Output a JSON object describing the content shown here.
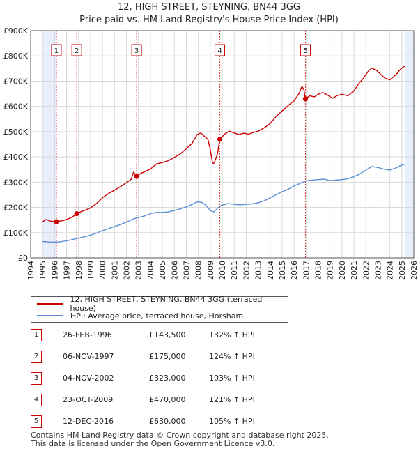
{
  "header": {
    "title_line1": "12, HIGH STREET, STEYNING, BN44 3GG",
    "title_line2": "Price paid vs. HM Land Registry's House Price Index (HPI)"
  },
  "colors": {
    "property": "#cc0000",
    "hpi": "#5b8ed6",
    "shade": "#e8eefb",
    "grid": "#d9d9d9",
    "marker_box": "#cc0000"
  },
  "legend": {
    "property_label": "12, HIGH STREET, STEYNING, BN44 3GG (terraced house)",
    "hpi_label": "HPI: Average price, terraced house, Horsham"
  },
  "sales": [
    {
      "num": "1",
      "date": "26-FEB-1996",
      "price": "£143,500",
      "hpi": "132% ↑ HPI"
    },
    {
      "num": "2",
      "date": "06-NOV-1997",
      "price": "£175,000",
      "hpi": "124% ↑ HPI"
    },
    {
      "num": "3",
      "date": "04-NOV-2002",
      "price": "£323,000",
      "hpi": "103% ↑ HPI"
    },
    {
      "num": "4",
      "date": "23-OCT-2009",
      "price": "£470,000",
      "hpi": "121% ↑ HPI"
    },
    {
      "num": "5",
      "date": "12-DEC-2016",
      "price": "£630,000",
      "hpi": "105% ↑ HPI"
    }
  ],
  "footer": {
    "line1": "Contains HM Land Registry data © Crown copyright and database right 2025.",
    "line2": "This data is licensed under the Open Government Licence v3.0."
  },
  "chart_data": {
    "type": "line",
    "title": "12, HIGH STREET, STEYNING, BN44 3GG",
    "subtitle": "Price paid vs. HM Land Registry's House Price Index (HPI)",
    "xlim": [
      1994,
      2026
    ],
    "ylim": [
      0,
      900000
    ],
    "x_ticks": [
      1994,
      1995,
      1996,
      1997,
      1998,
      1999,
      2000,
      2001,
      2002,
      2003,
      2004,
      2005,
      2006,
      2007,
      2008,
      2009,
      2010,
      2011,
      2012,
      2013,
      2014,
      2015,
      2016,
      2017,
      2018,
      2019,
      2020,
      2021,
      2022,
      2023,
      2024,
      2025,
      2026
    ],
    "y_ticks": [
      0,
      100000,
      200000,
      300000,
      400000,
      500000,
      600000,
      700000,
      800000,
      900000
    ],
    "y_tick_labels": [
      "£0",
      "£100K",
      "£200K",
      "£300K",
      "£400K",
      "£500K",
      "£600K",
      "£700K",
      "£800K",
      "£900K"
    ],
    "shaded_ranges": [
      [
        1995.0,
        1996.15
      ],
      [
        2025.25,
        2026.0
      ]
    ],
    "series": [
      {
        "name": "12, HIGH STREET, STEYNING, BN44 3GG (terraced house)",
        "color": "#cc0000",
        "points": [
          [
            1995.0,
            143000
          ],
          [
            1995.3,
            152000
          ],
          [
            1995.6,
            146000
          ],
          [
            1995.9,
            144000
          ],
          [
            1996.15,
            143500
          ],
          [
            1996.5,
            146000
          ],
          [
            1996.9,
            150000
          ],
          [
            1997.3,
            158000
          ],
          [
            1997.6,
            166000
          ],
          [
            1997.85,
            175000
          ],
          [
            1998.2,
            183000
          ],
          [
            1998.6,
            190000
          ],
          [
            1999.0,
            198000
          ],
          [
            1999.5,
            215000
          ],
          [
            2000.0,
            238000
          ],
          [
            2000.5,
            255000
          ],
          [
            2001.0,
            268000
          ],
          [
            2001.5,
            282000
          ],
          [
            2002.0,
            298000
          ],
          [
            2002.4,
            312000
          ],
          [
            2002.6,
            340000
          ],
          [
            2002.85,
            323000
          ],
          [
            2003.2,
            335000
          ],
          [
            2003.6,
            343000
          ],
          [
            2004.0,
            352000
          ],
          [
            2004.5,
            372000
          ],
          [
            2005.0,
            378000
          ],
          [
            2005.5,
            385000
          ],
          [
            2006.0,
            398000
          ],
          [
            2006.5,
            412000
          ],
          [
            2007.0,
            432000
          ],
          [
            2007.5,
            455000
          ],
          [
            2007.9,
            488000
          ],
          [
            2008.2,
            495000
          ],
          [
            2008.5,
            482000
          ],
          [
            2008.8,
            470000
          ],
          [
            2009.0,
            430000
          ],
          [
            2009.2,
            372000
          ],
          [
            2009.35,
            378000
          ],
          [
            2009.6,
            412000
          ],
          [
            2009.8,
            470000
          ],
          [
            2010.2,
            490000
          ],
          [
            2010.6,
            502000
          ],
          [
            2011.0,
            495000
          ],
          [
            2011.4,
            488000
          ],
          [
            2011.8,
            494000
          ],
          [
            2012.2,
            490000
          ],
          [
            2012.6,
            497000
          ],
          [
            2013.0,
            502000
          ],
          [
            2013.5,
            515000
          ],
          [
            2014.0,
            532000
          ],
          [
            2014.5,
            560000
          ],
          [
            2015.0,
            582000
          ],
          [
            2015.5,
            603000
          ],
          [
            2016.0,
            622000
          ],
          [
            2016.4,
            650000
          ],
          [
            2016.65,
            678000
          ],
          [
            2016.8,
            670000
          ],
          [
            2016.95,
            630000
          ],
          [
            2017.3,
            642000
          ],
          [
            2017.7,
            638000
          ],
          [
            2018.0,
            648000
          ],
          [
            2018.4,
            655000
          ],
          [
            2018.8,
            645000
          ],
          [
            2019.2,
            632000
          ],
          [
            2019.6,
            643000
          ],
          [
            2020.0,
            648000
          ],
          [
            2020.5,
            642000
          ],
          [
            2021.0,
            662000
          ],
          [
            2021.4,
            690000
          ],
          [
            2021.8,
            712000
          ],
          [
            2022.2,
            740000
          ],
          [
            2022.5,
            752000
          ],
          [
            2022.9,
            742000
          ],
          [
            2023.2,
            728000
          ],
          [
            2023.6,
            712000
          ],
          [
            2024.0,
            705000
          ],
          [
            2024.5,
            725000
          ],
          [
            2024.9,
            748000
          ],
          [
            2025.3,
            762000
          ]
        ]
      },
      {
        "name": "HPI: Average price, terraced house, Horsham",
        "color": "#5b8ed6",
        "points": [
          [
            1995.0,
            65000
          ],
          [
            1995.5,
            63000
          ],
          [
            1996.0,
            62000
          ],
          [
            1996.5,
            64000
          ],
          [
            1997.0,
            68000
          ],
          [
            1997.5,
            73000
          ],
          [
            1998.0,
            78000
          ],
          [
            1998.5,
            84000
          ],
          [
            1999.0,
            90000
          ],
          [
            1999.5,
            98000
          ],
          [
            2000.0,
            108000
          ],
          [
            2000.5,
            116000
          ],
          [
            2001.0,
            124000
          ],
          [
            2001.5,
            132000
          ],
          [
            2002.0,
            142000
          ],
          [
            2002.5,
            153000
          ],
          [
            2003.0,
            160000
          ],
          [
            2003.5,
            166000
          ],
          [
            2004.0,
            175000
          ],
          [
            2004.5,
            180000
          ],
          [
            2005.0,
            180000
          ],
          [
            2005.5,
            182000
          ],
          [
            2006.0,
            188000
          ],
          [
            2006.5,
            194000
          ],
          [
            2007.0,
            202000
          ],
          [
            2007.5,
            212000
          ],
          [
            2007.9,
            222000
          ],
          [
            2008.3,
            220000
          ],
          [
            2008.7,
            205000
          ],
          [
            2009.0,
            188000
          ],
          [
            2009.3,
            182000
          ],
          [
            2009.6,
            196000
          ],
          [
            2009.9,
            208000
          ],
          [
            2010.5,
            215000
          ],
          [
            2011.0,
            212000
          ],
          [
            2011.5,
            210000
          ],
          [
            2012.0,
            212000
          ],
          [
            2012.5,
            214000
          ],
          [
            2013.0,
            218000
          ],
          [
            2013.5,
            226000
          ],
          [
            2014.0,
            238000
          ],
          [
            2014.5,
            250000
          ],
          [
            2015.0,
            262000
          ],
          [
            2015.5,
            272000
          ],
          [
            2016.0,
            285000
          ],
          [
            2016.5,
            295000
          ],
          [
            2017.0,
            305000
          ],
          [
            2017.5,
            308000
          ],
          [
            2018.0,
            310000
          ],
          [
            2018.5,
            312000
          ],
          [
            2019.0,
            306000
          ],
          [
            2019.5,
            308000
          ],
          [
            2020.0,
            310000
          ],
          [
            2020.5,
            314000
          ],
          [
            2021.0,
            322000
          ],
          [
            2021.5,
            332000
          ],
          [
            2022.0,
            348000
          ],
          [
            2022.5,
            362000
          ],
          [
            2023.0,
            358000
          ],
          [
            2023.5,
            352000
          ],
          [
            2024.0,
            348000
          ],
          [
            2024.5,
            356000
          ],
          [
            2025.0,
            368000
          ],
          [
            2025.3,
            372000
          ]
        ]
      }
    ],
    "sale_markers": [
      {
        "label": "1",
        "x": 1996.15,
        "y": 143500
      },
      {
        "label": "2",
        "x": 1997.85,
        "y": 175000
      },
      {
        "label": "3",
        "x": 2002.85,
        "y": 323000
      },
      {
        "label": "4",
        "x": 2009.8,
        "y": 470000
      },
      {
        "label": "5",
        "x": 2016.95,
        "y": 630000
      }
    ]
  }
}
